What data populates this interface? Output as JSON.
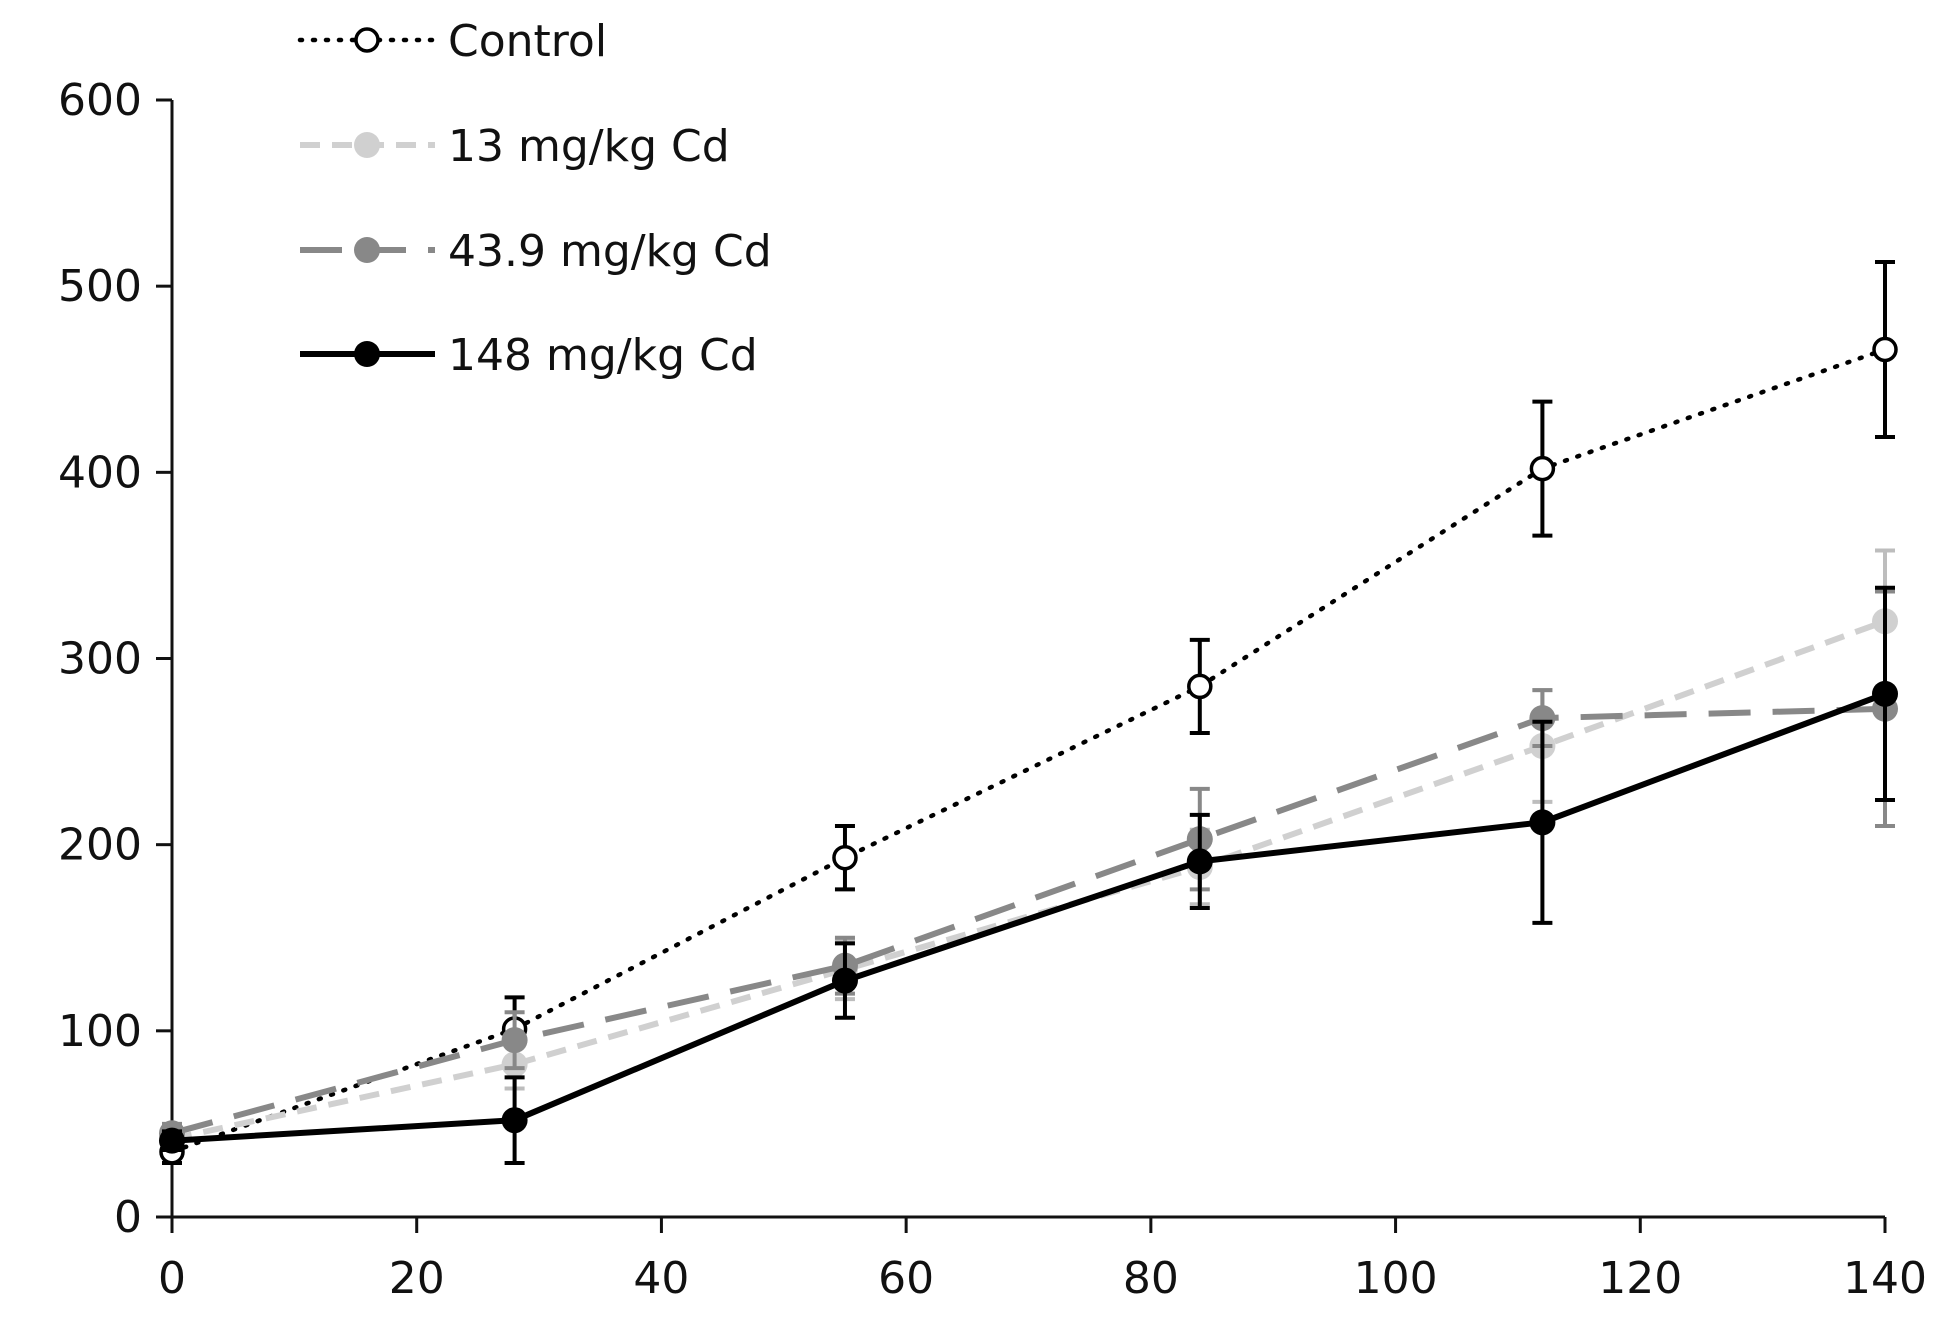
{
  "chart_data": {
    "type": "line",
    "title": "",
    "xlabel": "",
    "ylabel": "",
    "xlim": [
      0,
      140
    ],
    "ylim": [
      0,
      600
    ],
    "xticks": [
      0,
      20,
      40,
      60,
      80,
      100,
      120,
      140
    ],
    "yticks": [
      0,
      100,
      200,
      300,
      400,
      500,
      600
    ],
    "xtick_labels": [
      "0",
      "20",
      "40",
      "60",
      "80",
      "100",
      "120",
      "140"
    ],
    "ytick_labels": [
      "0",
      "100",
      "200",
      "300",
      "400",
      "500",
      "600"
    ],
    "grid": false,
    "legend_position": "top-left",
    "x": [
      0,
      28,
      55,
      84,
      112,
      140
    ],
    "series": [
      {
        "name": "Control",
        "style": "dotted",
        "marker": "open-circle",
        "color": "#000000",
        "values": [
          35,
          101,
          193,
          285,
          402,
          466
        ],
        "errors": [
          6,
          17,
          17,
          25,
          36,
          47
        ]
      },
      {
        "name": "13 mg/kg Cd",
        "style": "short-dash",
        "marker": "filled-circle",
        "color": "#d0d0d0",
        "values": [
          42,
          82,
          133,
          188,
          253,
          320
        ],
        "errors": [
          5,
          13,
          16,
          20,
          30,
          38
        ]
      },
      {
        "name": "43.9 mg/kg Cd",
        "style": "long-dash",
        "marker": "filled-circle",
        "color": "#888888",
        "values": [
          45,
          95,
          135,
          203,
          268,
          273
        ],
        "errors": [
          5,
          15,
          15,
          27,
          15,
          63
        ]
      },
      {
        "name": "148 mg/kg Cd",
        "style": "solid",
        "marker": "filled-circle",
        "color": "#000000",
        "values": [
          41,
          52,
          127,
          191,
          212,
          281
        ],
        "errors": [
          5,
          23,
          20,
          25,
          54,
          57
        ]
      }
    ]
  }
}
